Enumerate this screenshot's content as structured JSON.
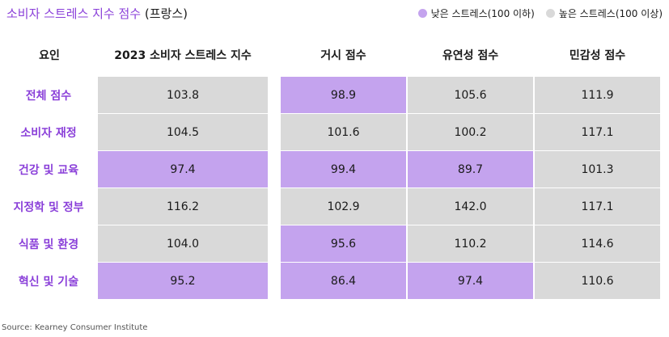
{
  "title": {
    "main": "소비자 스트레스 지수 점수",
    "suffix": "(프랑스)"
  },
  "legend": [
    {
      "label": "낮은 스트레스(100 이하)",
      "color": "#c4a3ee"
    },
    {
      "label": "높은 스트레스(100 이상)",
      "color": "#d9d9d9"
    }
  ],
  "source": "Source: Kearney Consumer Institute",
  "chart_data": {
    "type": "table",
    "columns": [
      "요인",
      "2023 소비자 스트레스 지수",
      "거시 점수",
      "유연성 점수",
      "민감성 점수"
    ],
    "rows": [
      {
        "label": "전체 점수",
        "values": [
          103.8,
          98.9,
          105.6,
          111.9
        ]
      },
      {
        "label": "소비자 재정",
        "values": [
          104.5,
          101.6,
          100.2,
          117.1
        ]
      },
      {
        "label": "건강 및 교육",
        "values": [
          97.4,
          99.4,
          89.7,
          101.3
        ]
      },
      {
        "label": "지정학 및 정부",
        "values": [
          116.2,
          102.9,
          142.0,
          117.1
        ]
      },
      {
        "label": "식품 및 환경",
        "values": [
          104.0,
          95.6,
          110.2,
          114.6
        ]
      },
      {
        "label": "혁신 및 기술",
        "values": [
          95.2,
          86.4,
          97.4,
          110.6
        ]
      }
    ],
    "threshold": 100,
    "low_stress_color": "#c4a3ee",
    "high_stress_color": "#d9d9d9"
  }
}
